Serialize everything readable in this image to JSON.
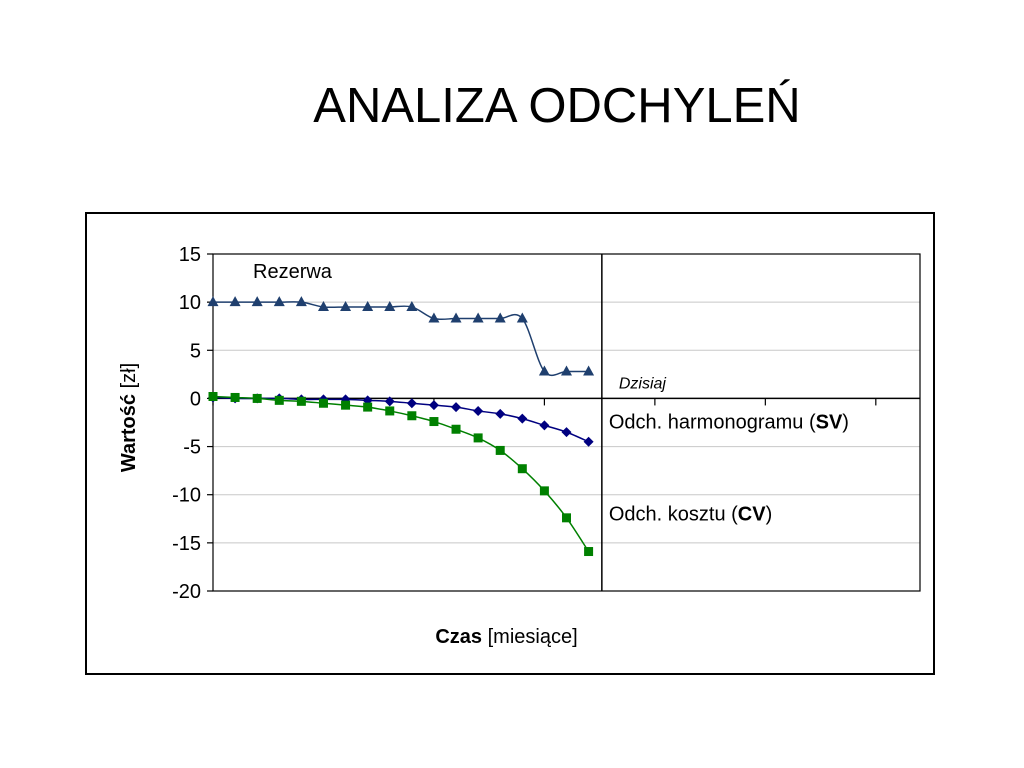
{
  "slide": {
    "title": "ANALIZA ODCHYLEŃ"
  },
  "chart_data": {
    "type": "line",
    "title": "",
    "xlabel_bold": "Czas",
    "xlabel_rest": " [miesiące]",
    "ylabel_bold": "Wartość",
    "ylabel_rest": " [zł]",
    "ylim": [
      -20,
      15
    ],
    "yticks": [
      15,
      10,
      5,
      0,
      -5,
      -10,
      -15,
      -20
    ],
    "y_tick_labels": [
      "15",
      "10",
      "5",
      "0",
      "-5",
      "-10",
      "-15",
      "-20"
    ],
    "xlim": [
      1,
      33
    ],
    "x_major_ticks": [
      1,
      6,
      11,
      16,
      21,
      26,
      31,
      36
    ],
    "grid": true,
    "legend": "none",
    "today": {
      "x": 18.6,
      "label": "Dzisiaj"
    },
    "series": [
      {
        "name": "Rezerwa",
        "marker": "triangle",
        "color": "#1f3f6e",
        "x": [
          1,
          2,
          3,
          4,
          5,
          6,
          7,
          8,
          9,
          10,
          11,
          12,
          13,
          14,
          15,
          16,
          17,
          18
        ],
        "values": [
          10,
          10,
          10,
          10,
          10,
          9.5,
          9.5,
          9.5,
          9.5,
          9.5,
          8.3,
          8.3,
          8.3,
          8.3,
          8.3,
          2.8,
          2.8,
          2.8
        ]
      },
      {
        "name_prefix": "Odch. harmonogramu (",
        "name_bold": "SV",
        "name_suffix": ")",
        "marker": "diamond",
        "color": "#000080",
        "x": [
          1,
          2,
          3,
          4,
          5,
          6,
          7,
          8,
          9,
          10,
          11,
          12,
          13,
          14,
          15,
          16,
          17,
          18
        ],
        "values": [
          0.1,
          0,
          0,
          0,
          -0.1,
          -0.1,
          -0.1,
          -0.2,
          -0.3,
          -0.5,
          -0.7,
          -0.9,
          -1.3,
          -1.6,
          -2.1,
          -2.8,
          -3.5,
          -4.5
        ]
      },
      {
        "name_prefix": "Odch. kosztu (",
        "name_bold": "CV",
        "name_suffix": ")",
        "marker": "square",
        "color": "#008000",
        "x": [
          1,
          2,
          3,
          4,
          5,
          6,
          7,
          8,
          9,
          10,
          11,
          12,
          13,
          14,
          15,
          16,
          17,
          18
        ],
        "values": [
          0.2,
          0.1,
          0,
          -0.2,
          -0.3,
          -0.5,
          -0.7,
          -0.9,
          -1.3,
          -1.8,
          -2.4,
          -3.2,
          -4.1,
          -5.4,
          -7.3,
          -9.6,
          -12.4,
          -15.9
        ]
      }
    ]
  }
}
